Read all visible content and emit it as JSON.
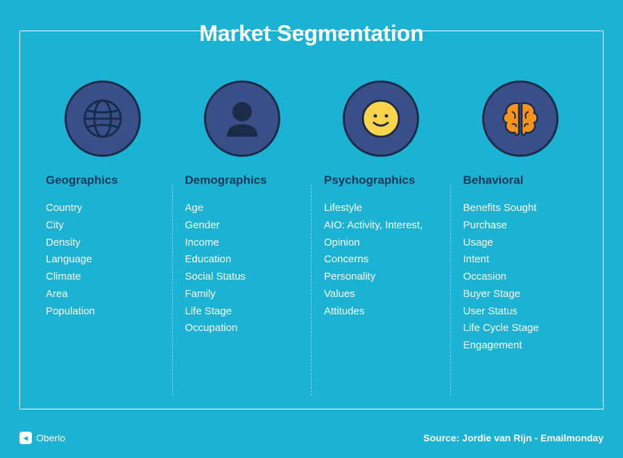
{
  "title": "Market Segmentation",
  "style": {
    "background_color": "#1bb2d4",
    "frame_border_color": "#ffffff",
    "title_color": "#ffffff",
    "title_fontsize": 32,
    "title_fontweight": 700,
    "category_title_color": "#163a5a",
    "category_title_fontsize": 17,
    "item_color": "#ffffff",
    "item_fontsize": 15,
    "divider_color": "rgba(255,255,255,0.45)",
    "icon_circle_bg": "#3a4f87",
    "icon_circle_border": "#1a2b4a",
    "icon_circle_diameter": 110,
    "accent_orange": "#f7941e",
    "accent_yellow": "#f8d44c",
    "accent_linework": "#1a2b4a",
    "footer_color": "#ffffff",
    "footer_fontsize": 14
  },
  "categories": [
    {
      "icon": "globe",
      "title": "Geographics",
      "items": [
        "Country",
        "City",
        "Density",
        "Language",
        "Climate",
        "Area",
        "Population"
      ]
    },
    {
      "icon": "person",
      "title": "Demographics",
      "items": [
        "Age",
        "Gender",
        "Income",
        "Education",
        "Social Status",
        "Family",
        "Life Stage",
        "Occupation"
      ]
    },
    {
      "icon": "smiley",
      "title": "Psychographics",
      "items": [
        "Lifestyle",
        "AIO: Activity, Interest, Opinion",
        "Concerns",
        "Personality",
        "Values",
        "Attitudes"
      ]
    },
    {
      "icon": "brain",
      "title": "Behavioral",
      "items": [
        "Benefits Sought",
        "Purchase",
        "Usage",
        "Intent",
        "Occasion",
        "Buyer Stage",
        "User Status",
        "Life Cycle Stage",
        "Engagement"
      ]
    }
  ],
  "footer": {
    "brand": "Oberlo",
    "source": "Source: Jordie van Rijn - Emailmonday"
  }
}
